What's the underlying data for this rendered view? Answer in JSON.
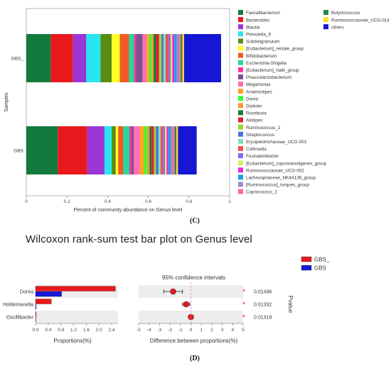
{
  "panel_c_label": "(C)",
  "panel_d_label": "(D)",
  "wilcoxon_title": "Wilcoxon rank-sum test bar plot on Genus level",
  "chart_data": [
    {
      "type": "bar",
      "orientation": "horizontal-stacked",
      "ylabel": "Samples",
      "xlabel": "Percent of community abundance on Genus level",
      "xlim": [
        0,
        1
      ],
      "x_ticks": [
        "0",
        "0.2",
        "0.4",
        "0.6",
        "0.8",
        "1"
      ],
      "categories": [
        "GBS_",
        "GBS"
      ],
      "legend_position": "right",
      "series": [
        {
          "name": "Faecalibacterium",
          "color": "#127a3c",
          "values": [
            0.12,
            0.155
          ]
        },
        {
          "name": "Bacteroides",
          "color": "#e8191c",
          "values": [
            0.11,
            0.145
          ]
        },
        {
          "name": "Blautia",
          "color": "#9a36d6",
          "values": [
            0.065,
            0.085
          ]
        },
        {
          "name": "Prevotella_9",
          "color": "#27e6f0",
          "values": [
            0.07,
            0.035
          ]
        },
        {
          "name": "Subdoligranulum",
          "color": "#5b8c12",
          "values": [
            0.055,
            0.02
          ]
        },
        {
          "name": "[Eubacterium]_rectale_group",
          "color": "#ffff22",
          "values": [
            0.04,
            0.012
          ]
        },
        {
          "name": "Bifidobacterium",
          "color": "#f15a22",
          "values": [
            0.045,
            0.025
          ]
        },
        {
          "name": "Escherichia-Shigella",
          "color": "#26d79a",
          "values": [
            0.025,
            0.03
          ]
        },
        {
          "name": "[Eubacterium]_hallii_group",
          "color": "#ff3399",
          "values": [
            0.01,
            0.01
          ]
        },
        {
          "name": "Phascolarctobacterium",
          "color": "#7e4f96",
          "values": [
            0.032,
            0.012
          ]
        },
        {
          "name": "Megamonas",
          "color": "#ff6fb0",
          "values": [
            0.02,
            0.03
          ]
        },
        {
          "name": "Anaerostipes",
          "color": "#ffa321",
          "values": [
            0.012,
            0.02
          ]
        },
        {
          "name": "Dorea",
          "color": "#33ff33",
          "values": [
            0.012,
            0.015
          ]
        },
        {
          "name": "Dialister",
          "color": "#ff9933",
          "values": [
            0.01,
            0.012
          ]
        },
        {
          "name": "Roseburia",
          "color": "#1c7a3a",
          "values": [
            0.012,
            0.01
          ]
        },
        {
          "name": "Alistipes",
          "color": "#e02030",
          "values": [
            0.015,
            0.012
          ]
        },
        {
          "name": "Ruminococcus_2",
          "color": "#9bd62a",
          "values": [
            0.012,
            0.01
          ]
        },
        {
          "name": "Streptococcus",
          "color": "#4a6fe0",
          "values": [
            0.01,
            0.012
          ]
        },
        {
          "name": "Erysipelotrichaceae_UCG-003",
          "color": "#7fe0c0",
          "values": [
            0.01,
            0.01
          ]
        },
        {
          "name": "Collinsella",
          "color": "#f05050",
          "values": [
            0.015,
            0.012
          ]
        },
        {
          "name": "Fusicatenibacter",
          "color": "#8a6ae8",
          "values": [
            0.01,
            0.01
          ]
        },
        {
          "name": "[Eubacterium]_coprostanoligenes_group",
          "color": "#d4f062",
          "values": [
            0.008,
            0.008
          ]
        },
        {
          "name": "Ruminococcaceae_UCG-002",
          "color": "#e829d8",
          "values": [
            0.01,
            0.01
          ]
        },
        {
          "name": "Lachnospiraceae_NK4A136_group",
          "color": "#1aa0e6",
          "values": [
            0.012,
            0.01
          ]
        },
        {
          "name": "[Ruminococcus]_torques_group",
          "color": "#9a8cc8",
          "values": [
            0.01,
            0.01
          ]
        },
        {
          "name": "Coprococcus_2",
          "color": "#ff6699",
          "values": [
            0.01,
            0.01
          ]
        },
        {
          "name": "Butyricicoccus",
          "color": "#25874b",
          "values": [
            0.008,
            0.008
          ]
        },
        {
          "name": "Ruminococcaceae_UCG-014",
          "color": "#ffdd22",
          "values": [
            0.008,
            0.008
          ]
        },
        {
          "name": "others",
          "color": "#1616d4",
          "values": [
            0.182,
            0.092
          ]
        }
      ]
    },
    {
      "type": "bar",
      "orientation": "horizontal-grouped",
      "xlabel": "Proportions(%)",
      "xlim": [
        0,
        2.6
      ],
      "x_ticks": [
        "0.0",
        "0.4",
        "0.8",
        "1.2",
        "1.6",
        "2.0",
        "2.4"
      ],
      "categories": [
        "Dorea",
        "Holdemanella",
        "Oscillibacter"
      ],
      "legend_position": "top-right",
      "series": [
        {
          "name": "GBS_",
          "color": "#e8191c",
          "values": [
            2.52,
            0.5,
            0.02
          ]
        },
        {
          "name": "GBS",
          "color": "#1717d9",
          "values": [
            0.82,
            0.02,
            0.01
          ]
        }
      ]
    },
    {
      "type": "scatter",
      "title": "95% confidence intervals",
      "xlabel": "Difference between proportions(%)",
      "ylabel": "Pvalue",
      "xlim": [
        -5,
        5
      ],
      "x_ticks": [
        "-5",
        "-4",
        "-3",
        "-2",
        "-1",
        "0",
        "1",
        "2",
        "3",
        "4",
        "5"
      ],
      "categories": [
        "Dorea",
        "Holdemanella",
        "Oscillibacter"
      ],
      "points": [
        {
          "category": "Dorea",
          "diff": -1.7,
          "ci": [
            -2.6,
            -0.8
          ],
          "pvalue": "0.01496",
          "marker": "*"
        },
        {
          "category": "Holdemanella",
          "diff": -0.45,
          "ci": [
            -0.8,
            -0.1
          ],
          "pvalue": "0.01332",
          "marker": "*"
        },
        {
          "category": "Oscillibacter",
          "diff": 0.0,
          "ci": [
            -0.05,
            0.05
          ],
          "pvalue": "0.01318",
          "marker": "*"
        }
      ],
      "point_color": "#e8191c"
    }
  ]
}
